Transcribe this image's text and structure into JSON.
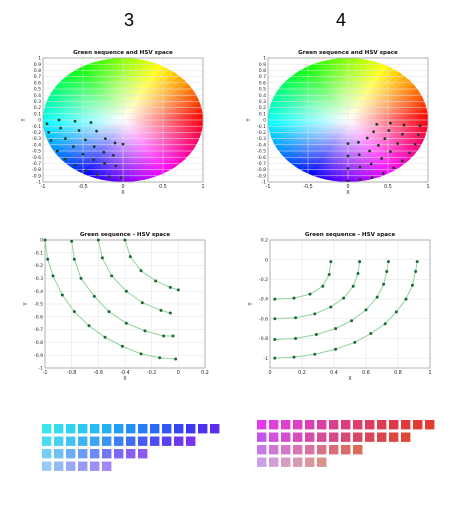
{
  "columns": [
    {
      "label": "3"
    },
    {
      "label": "4"
    }
  ],
  "chart_data": [
    {
      "type": "scatter",
      "title": "Green sequence and HSV space",
      "xlabel": "X",
      "ylabel": "Y",
      "xlim": [
        -1,
        1
      ],
      "ylim": [
        -1,
        1
      ],
      "xticks": [
        -1,
        -0.5,
        0,
        0.5,
        1
      ],
      "yticks": [
        -1,
        -0.9,
        -0.8,
        -0.7,
        -0.6,
        -0.5,
        -0.4,
        -0.3,
        -0.2,
        -0.1,
        0,
        0.1,
        0.2,
        0.3,
        0.4,
        0.5,
        0.6,
        0.7,
        0.8,
        0.9,
        1
      ],
      "background": "HSV color disk",
      "grid": true,
      "point_color": "#1f3d2a",
      "series": [
        {
          "points": [
            [
              -0.95,
              -0.06
            ],
            [
              -0.93,
              -0.2
            ],
            [
              -0.9,
              -0.33
            ],
            [
              -0.82,
              -0.5
            ],
            [
              -0.72,
              -0.63
            ],
            [
              -0.6,
              -0.73
            ],
            [
              -0.46,
              -0.82
            ],
            [
              -0.32,
              -0.88
            ],
            [
              -0.17,
              -0.92
            ],
            [
              -0.02,
              -0.93
            ]
          ]
        },
        {
          "points": [
            [
              -0.8,
              0
            ],
            [
              -0.78,
              -0.13
            ],
            [
              -0.72,
              -0.3
            ],
            [
              -0.62,
              -0.43
            ],
            [
              -0.5,
              -0.55
            ],
            [
              -0.37,
              -0.64
            ],
            [
              -0.23,
              -0.7
            ],
            [
              -0.09,
              -0.74
            ]
          ]
        },
        {
          "points": [
            [
              -0.6,
              -0.02
            ],
            [
              -0.55,
              -0.17
            ],
            [
              -0.47,
              -0.32
            ],
            [
              -0.36,
              -0.43
            ],
            [
              -0.24,
              -0.52
            ],
            [
              -0.12,
              -0.57
            ]
          ]
        },
        {
          "points": [
            [
              -0.4,
              -0.04
            ],
            [
              -0.33,
              -0.18
            ],
            [
              -0.22,
              -0.3
            ],
            [
              -0.1,
              -0.37
            ],
            [
              0,
              -0.39
            ]
          ]
        }
      ]
    },
    {
      "type": "scatter",
      "title": "Green sequence and HSV space",
      "xlabel": "X",
      "ylabel": "Y",
      "xlim": [
        -1,
        1
      ],
      "ylim": [
        -1,
        1
      ],
      "xticks": [
        -1,
        -0.5,
        0,
        0.5,
        1
      ],
      "yticks": [
        -1,
        -0.9,
        -0.8,
        -0.7,
        -0.6,
        -0.5,
        -0.4,
        -0.3,
        -0.2,
        -0.1,
        0,
        0.1,
        0.2,
        0.3,
        0.4,
        0.5,
        0.6,
        0.7,
        0.8,
        0.9,
        1
      ],
      "background": "HSV color disk",
      "grid": true,
      "point_color": "#1f3d2a",
      "series": [
        {
          "points": [
            [
              0,
              -0.98
            ],
            [
              0.15,
              -0.96
            ],
            [
              0.3,
              -0.93
            ],
            [
              0.44,
              -0.86
            ],
            [
              0.57,
              -0.77
            ],
            [
              0.68,
              -0.66
            ],
            [
              0.77,
              -0.53
            ],
            [
              0.84,
              -0.39
            ],
            [
              0.88,
              -0.24
            ],
            [
              0.9,
              -0.09
            ]
          ]
        },
        {
          "points": [
            [
              0,
              -0.78
            ],
            [
              0.15,
              -0.76
            ],
            [
              0.29,
              -0.71
            ],
            [
              0.42,
              -0.62
            ],
            [
              0.53,
              -0.51
            ],
            [
              0.62,
              -0.38
            ],
            [
              0.68,
              -0.23
            ],
            [
              0.7,
              -0.08
            ]
          ]
        },
        {
          "points": [
            [
              0,
              -0.58
            ],
            [
              0.14,
              -0.56
            ],
            [
              0.27,
              -0.5
            ],
            [
              0.38,
              -0.41
            ],
            [
              0.46,
              -0.3
            ],
            [
              0.51,
              -0.17
            ],
            [
              0.53,
              -0.05
            ]
          ]
        },
        {
          "points": [
            [
              0,
              -0.38
            ],
            [
              0.13,
              -0.36
            ],
            [
              0.24,
              -0.29
            ],
            [
              0.32,
              -0.19
            ],
            [
              0.36,
              -0.07
            ]
          ]
        }
      ]
    },
    {
      "type": "line",
      "title": "Green sequence - HSV space",
      "xlabel": "X",
      "ylabel": "Y",
      "xlim": [
        -1,
        0.2
      ],
      "ylim": [
        -1,
        0
      ],
      "xticks": [
        -1,
        -0.8,
        -0.6,
        -0.4,
        -0.2,
        0,
        0.2
      ],
      "yticks": [
        0,
        -0.1,
        -0.2,
        -0.3,
        -0.4,
        -0.5,
        -0.6,
        -0.7,
        -0.8,
        -0.9,
        -1
      ],
      "grid": true,
      "line_color": "#8fd39a",
      "point_color": "#1a6b33",
      "series": [
        {
          "points": [
            [
              -1,
              0
            ],
            [
              -0.98,
              -0.15
            ],
            [
              -0.94,
              -0.28
            ],
            [
              -0.87,
              -0.43
            ],
            [
              -0.78,
              -0.56
            ],
            [
              -0.67,
              -0.67
            ],
            [
              -0.55,
              -0.76
            ],
            [
              -0.42,
              -0.83
            ],
            [
              -0.28,
              -0.89
            ],
            [
              -0.14,
              -0.92
            ],
            [
              -0.02,
              -0.93
            ]
          ]
        },
        {
          "points": [
            [
              -0.8,
              -0.01
            ],
            [
              -0.78,
              -0.15
            ],
            [
              -0.73,
              -0.3
            ],
            [
              -0.63,
              -0.44
            ],
            [
              -0.52,
              -0.56
            ],
            [
              -0.39,
              -0.65
            ],
            [
              -0.25,
              -0.71
            ],
            [
              -0.11,
              -0.75
            ],
            [
              -0.04,
              -0.75
            ]
          ]
        },
        {
          "points": [
            [
              -0.6,
              0
            ],
            [
              -0.57,
              -0.14
            ],
            [
              -0.5,
              -0.28
            ],
            [
              -0.39,
              -0.4
            ],
            [
              -0.27,
              -0.49
            ],
            [
              -0.13,
              -0.55
            ],
            [
              -0.06,
              -0.57
            ]
          ]
        },
        {
          "points": [
            [
              -0.4,
              0
            ],
            [
              -0.36,
              -0.13
            ],
            [
              -0.28,
              -0.24
            ],
            [
              -0.17,
              -0.32
            ],
            [
              -0.06,
              -0.37
            ],
            [
              0,
              -0.39
            ]
          ]
        }
      ]
    },
    {
      "type": "line",
      "title": "Green sequence - HSV space",
      "xlabel": "X",
      "ylabel": "Y",
      "xlim": [
        0,
        1
      ],
      "ylim": [
        -1.1,
        0.2
      ],
      "xticks": [
        0,
        0.2,
        0.4,
        0.6,
        0.8,
        1
      ],
      "yticks": [
        0.2,
        0,
        -0.2,
        -0.4,
        -0.6,
        -0.8,
        -1
      ],
      "grid": true,
      "line_color": "#8fd39a",
      "point_color": "#1a6b33",
      "series": [
        {
          "points": [
            [
              0.03,
              -1.0
            ],
            [
              0.15,
              -0.99
            ],
            [
              0.28,
              -0.96
            ],
            [
              0.41,
              -0.91
            ],
            [
              0.53,
              -0.84
            ],
            [
              0.63,
              -0.75
            ],
            [
              0.72,
              -0.65
            ],
            [
              0.79,
              -0.53
            ],
            [
              0.85,
              -0.4
            ],
            [
              0.89,
              -0.26
            ],
            [
              0.91,
              -0.12
            ],
            [
              0.92,
              -0.02
            ]
          ]
        },
        {
          "points": [
            [
              0.03,
              -0.81
            ],
            [
              0.16,
              -0.8
            ],
            [
              0.29,
              -0.76
            ],
            [
              0.41,
              -0.7
            ],
            [
              0.51,
              -0.62
            ],
            [
              0.6,
              -0.51
            ],
            [
              0.67,
              -0.38
            ],
            [
              0.71,
              -0.25
            ],
            [
              0.73,
              -0.12
            ],
            [
              0.74,
              -0.02
            ]
          ]
        },
        {
          "points": [
            [
              0.03,
              -0.6
            ],
            [
              0.16,
              -0.59
            ],
            [
              0.28,
              -0.55
            ],
            [
              0.38,
              -0.48
            ],
            [
              0.46,
              -0.39
            ],
            [
              0.52,
              -0.27
            ],
            [
              0.55,
              -0.14
            ],
            [
              0.56,
              -0.02
            ]
          ]
        },
        {
          "points": [
            [
              0.03,
              -0.4
            ],
            [
              0.15,
              -0.39
            ],
            [
              0.25,
              -0.35
            ],
            [
              0.33,
              -0.27
            ],
            [
              0.37,
              -0.15
            ],
            [
              0.38,
              -0.02
            ]
          ]
        }
      ]
    }
  ],
  "swatches": [
    {
      "rows": [
        [
          "#3ce3ec",
          "#36dcee",
          "#30d3f0",
          "#2ac8f2",
          "#26bcf3",
          "#23aff4",
          "#229ff5",
          "#238ef5",
          "#257cf5",
          "#296af5",
          "#2e57f4",
          "#3547f3",
          "#3d39f2",
          "#4a31f0",
          "#5b2dee"
        ],
        [
          "#4ddbf1",
          "#46d0f3",
          "#41c3f4",
          "#3db5f5",
          "#3ba4f6",
          "#3b93f6",
          "#3d80f6",
          "#416df6",
          "#475bf5",
          "#4f4bf4",
          "#5a40f3",
          "#6838f2",
          "#7a33f0"
        ],
        [
          "#74cff4",
          "#6ec0f5",
          "#6baef6",
          "#6b9cf7",
          "#6d89f7",
          "#7277f6",
          "#7969f5",
          "#835ff4",
          "#9058f3"
        ],
        [
          "#99cbf6",
          "#97baf7",
          "#97a8f7",
          "#999af7",
          "#9d8ff7",
          "#a487f7"
        ]
      ]
    },
    {
      "rows": [
        [
          "#e43bea",
          "#e03ee0",
          "#de3fd2",
          "#dc40c3",
          "#db40b2",
          "#da40a1",
          "#da3f8f",
          "#da3e7e",
          "#da3d6e",
          "#db3c5f",
          "#dc3b52",
          "#dd3a47",
          "#df393d",
          "#e13935",
          "#e43a2f"
        ],
        [
          "#c653ea",
          "#cf51dd",
          "#d44fcd",
          "#d64dbc",
          "#d74caa",
          "#d74a98",
          "#d74986",
          "#d84874",
          "#d84764",
          "#d94656",
          "#da464a",
          "#dc4640",
          "#de4737"
        ],
        [
          "#c676ea",
          "#d077d9",
          "#d577c6",
          "#d875b2",
          "#d9739e",
          "#d9708a",
          "#d96d78",
          "#da6b67",
          "#db6a58"
        ],
        [
          "#c99fe9",
          "#d19ed8",
          "#d69cc4",
          "#d999b0",
          "#da969c",
          "#da9389"
        ]
      ]
    }
  ]
}
